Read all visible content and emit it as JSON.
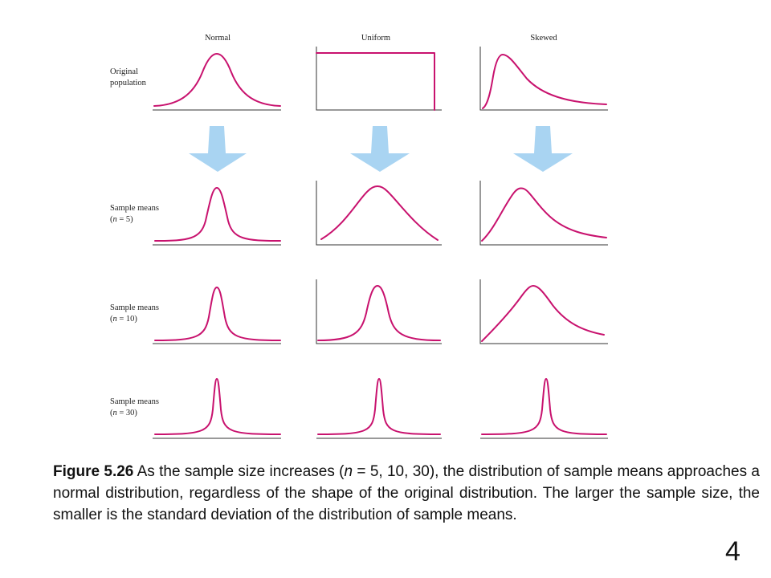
{
  "columns": [
    "Normal",
    "Uniform",
    "Skewed"
  ],
  "rows": [
    {
      "line1": "Original",
      "line2": "population"
    },
    {
      "line1": "Sample means",
      "line2_pre": "(",
      "line2_n": "n",
      "line2_post": " = 5)"
    },
    {
      "line1": "Sample means",
      "line2_pre": "(",
      "line2_n": "n",
      "line2_post": " = 10)"
    },
    {
      "line1": "Sample means",
      "line2_pre": "(",
      "line2_n": "n",
      "line2_post": " = 30)"
    }
  ],
  "colors": {
    "curve": "#c8126e",
    "arrow": "#a9d4f2",
    "axis": "#333333"
  },
  "caption": {
    "label": "Figure 5.26",
    "part1": " As the sample size increases (",
    "n": "n",
    "part2": " = 5, 10, 30), the distribution of sample means approaches a normal distribution, regardless of the shape of the original distribution. The larger the sample size, the smaller is the standard deviation of the distribution of sample means."
  },
  "page_number": "4"
}
